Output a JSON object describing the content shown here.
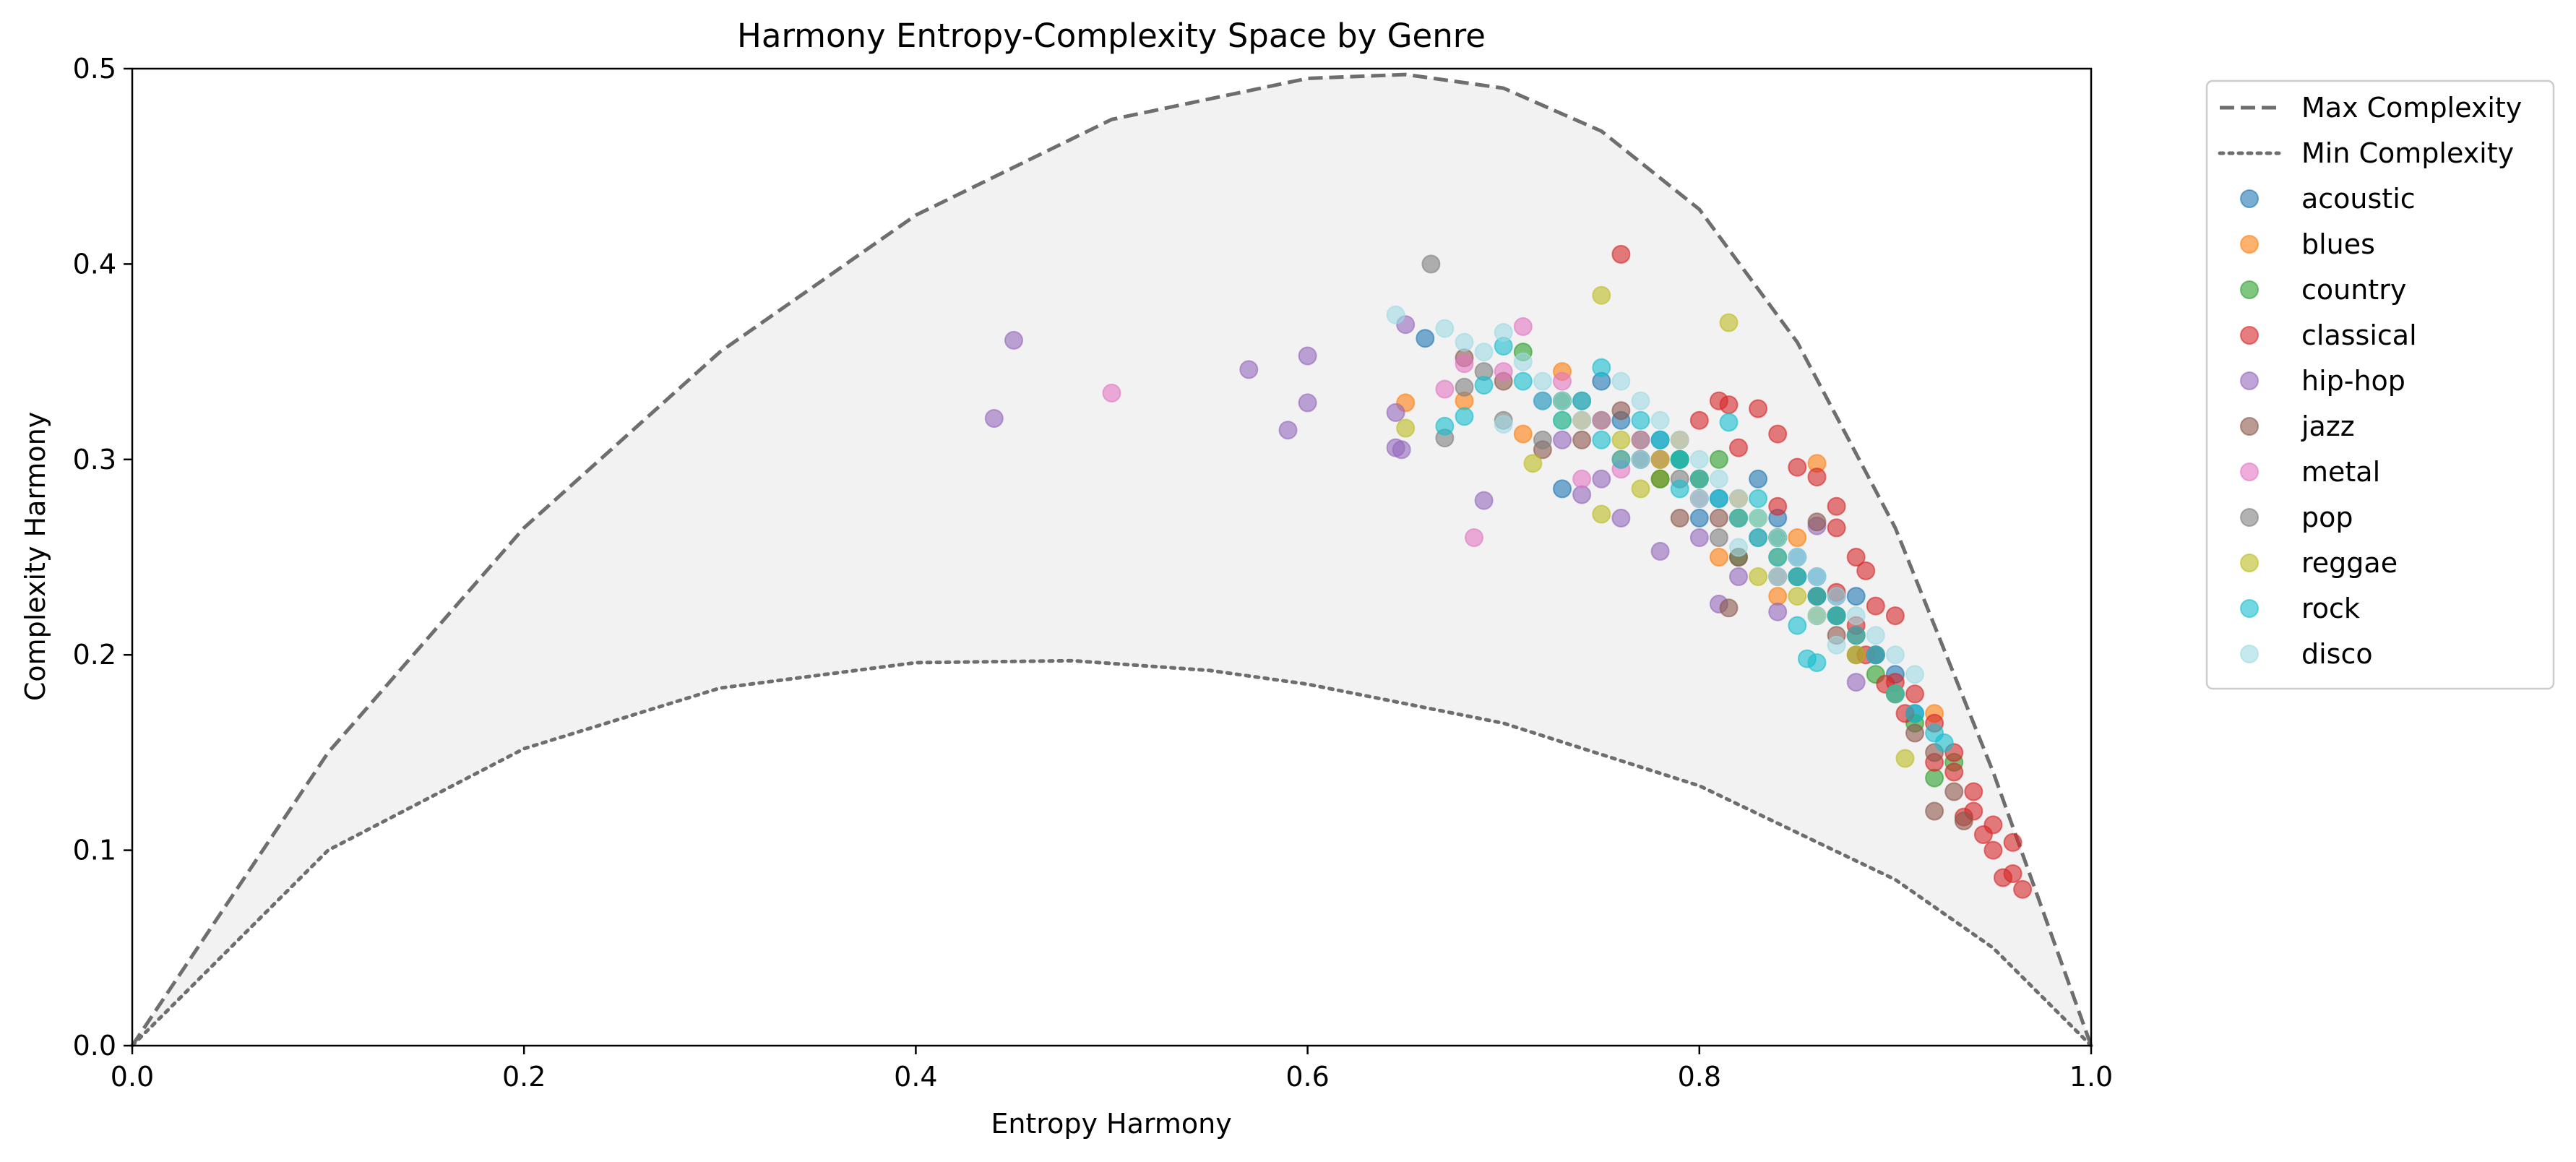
{
  "chart_data": {
    "type": "scatter",
    "title": "Harmony Entropy-Complexity Space by Genre",
    "xlabel": "Entropy Harmony",
    "ylabel": "Complexity Harmony",
    "xlim": [
      0.0,
      1.0
    ],
    "ylim": [
      0.0,
      0.5
    ],
    "xticks": [
      "0.0",
      "0.2",
      "0.4",
      "0.6",
      "0.8",
      "1.0"
    ],
    "yticks": [
      "0.0",
      "0.1",
      "0.2",
      "0.3",
      "0.4",
      "0.5"
    ],
    "grid": false,
    "legend_position": "outside upper right",
    "boundary_curves": [
      {
        "name": "Max Complexity",
        "style": "dashed",
        "color": "#6e6e6e",
        "points": [
          [
            0.0,
            0.0
          ],
          [
            0.1,
            0.15
          ],
          [
            0.2,
            0.265
          ],
          [
            0.3,
            0.355
          ],
          [
            0.4,
            0.425
          ],
          [
            0.5,
            0.474
          ],
          [
            0.6,
            0.495
          ],
          [
            0.65,
            0.497
          ],
          [
            0.7,
            0.49
          ],
          [
            0.75,
            0.468
          ],
          [
            0.8,
            0.428
          ],
          [
            0.85,
            0.36
          ],
          [
            0.9,
            0.265
          ],
          [
            0.95,
            0.14
          ],
          [
            1.0,
            0.0
          ]
        ]
      },
      {
        "name": "Min Complexity",
        "style": "dotted",
        "color": "#6e6e6e",
        "points": [
          [
            0.0,
            0.0
          ],
          [
            0.1,
            0.1
          ],
          [
            0.2,
            0.152
          ],
          [
            0.3,
            0.183
          ],
          [
            0.4,
            0.196
          ],
          [
            0.48,
            0.197
          ],
          [
            0.55,
            0.192
          ],
          [
            0.6,
            0.185
          ],
          [
            0.7,
            0.165
          ],
          [
            0.8,
            0.133
          ],
          [
            0.9,
            0.085
          ],
          [
            0.95,
            0.05
          ],
          [
            1.0,
            0.0
          ]
        ]
      }
    ],
    "series": [
      {
        "name": "acoustic",
        "color": "#1f77b4",
        "points": [
          [
            0.66,
            0.362
          ],
          [
            0.73,
            0.33
          ],
          [
            0.75,
            0.34
          ],
          [
            0.76,
            0.32
          ],
          [
            0.78,
            0.31
          ],
          [
            0.79,
            0.3
          ],
          [
            0.8,
            0.29
          ],
          [
            0.81,
            0.28
          ],
          [
            0.82,
            0.27
          ],
          [
            0.83,
            0.29
          ],
          [
            0.84,
            0.26
          ],
          [
            0.85,
            0.25
          ],
          [
            0.86,
            0.24
          ],
          [
            0.87,
            0.23
          ],
          [
            0.88,
            0.21
          ],
          [
            0.89,
            0.2
          ],
          [
            0.9,
            0.19
          ],
          [
            0.91,
            0.17
          ],
          [
            0.73,
            0.285
          ],
          [
            0.77,
            0.3
          ],
          [
            0.8,
            0.27
          ],
          [
            0.84,
            0.27
          ],
          [
            0.86,
            0.22
          ],
          [
            0.88,
            0.23
          ]
        ]
      },
      {
        "name": "blues",
        "color": "#ff7f0e",
        "points": [
          [
            0.65,
            0.329
          ],
          [
            0.68,
            0.33
          ],
          [
            0.71,
            0.313
          ],
          [
            0.73,
            0.345
          ],
          [
            0.76,
            0.3
          ],
          [
            0.78,
            0.29
          ],
          [
            0.79,
            0.31
          ],
          [
            0.82,
            0.28
          ],
          [
            0.85,
            0.26
          ],
          [
            0.86,
            0.298
          ],
          [
            0.87,
            0.22
          ],
          [
            0.88,
            0.21
          ],
          [
            0.9,
            0.18
          ],
          [
            0.92,
            0.17
          ],
          [
            0.74,
            0.32
          ],
          [
            0.81,
            0.25
          ],
          [
            0.84,
            0.23
          ]
        ]
      },
      {
        "name": "country",
        "color": "#2ca02c",
        "points": [
          [
            0.71,
            0.355
          ],
          [
            0.73,
            0.33
          ],
          [
            0.75,
            0.32
          ],
          [
            0.77,
            0.31
          ],
          [
            0.79,
            0.3
          ],
          [
            0.8,
            0.28
          ],
          [
            0.81,
            0.3
          ],
          [
            0.82,
            0.25
          ],
          [
            0.83,
            0.27
          ],
          [
            0.84,
            0.26
          ],
          [
            0.85,
            0.24
          ],
          [
            0.87,
            0.22
          ],
          [
            0.89,
            0.19
          ],
          [
            0.91,
            0.165
          ],
          [
            0.93,
            0.145
          ],
          [
            0.92,
            0.137
          ],
          [
            0.78,
            0.29
          ],
          [
            0.86,
            0.23
          ]
        ]
      },
      {
        "name": "classical",
        "color": "#d62728",
        "points": [
          [
            0.76,
            0.405
          ],
          [
            0.81,
            0.33
          ],
          [
            0.815,
            0.328
          ],
          [
            0.82,
            0.306
          ],
          [
            0.8,
            0.32
          ],
          [
            0.83,
            0.326
          ],
          [
            0.84,
            0.313
          ],
          [
            0.84,
            0.276
          ],
          [
            0.85,
            0.296
          ],
          [
            0.86,
            0.291
          ],
          [
            0.87,
            0.276
          ],
          [
            0.87,
            0.265
          ],
          [
            0.88,
            0.25
          ],
          [
            0.885,
            0.243
          ],
          [
            0.89,
            0.225
          ],
          [
            0.9,
            0.22
          ],
          [
            0.89,
            0.2
          ],
          [
            0.9,
            0.186
          ],
          [
            0.91,
            0.18
          ],
          [
            0.92,
            0.165
          ],
          [
            0.93,
            0.15
          ],
          [
            0.93,
            0.14
          ],
          [
            0.94,
            0.13
          ],
          [
            0.94,
            0.12
          ],
          [
            0.95,
            0.113
          ],
          [
            0.95,
            0.1
          ],
          [
            0.96,
            0.104
          ],
          [
            0.955,
            0.086
          ],
          [
            0.96,
            0.088
          ],
          [
            0.965,
            0.08
          ],
          [
            0.945,
            0.108
          ],
          [
            0.935,
            0.117
          ],
          [
            0.92,
            0.145
          ],
          [
            0.905,
            0.17
          ],
          [
            0.895,
            0.185
          ],
          [
            0.885,
            0.2
          ],
          [
            0.88,
            0.215
          ],
          [
            0.87,
            0.232
          ]
        ]
      },
      {
        "name": "hip-hop",
        "color": "#9467bd",
        "points": [
          [
            0.44,
            0.321
          ],
          [
            0.45,
            0.361
          ],
          [
            0.57,
            0.346
          ],
          [
            0.59,
            0.315
          ],
          [
            0.6,
            0.329
          ],
          [
            0.6,
            0.353
          ],
          [
            0.645,
            0.306
          ],
          [
            0.645,
            0.324
          ],
          [
            0.648,
            0.305
          ],
          [
            0.65,
            0.369
          ],
          [
            0.69,
            0.279
          ],
          [
            0.74,
            0.282
          ],
          [
            0.75,
            0.29
          ],
          [
            0.78,
            0.253
          ],
          [
            0.8,
            0.26
          ],
          [
            0.81,
            0.226
          ],
          [
            0.84,
            0.222
          ],
          [
            0.86,
            0.266
          ],
          [
            0.88,
            0.186
          ],
          [
            0.73,
            0.31
          ],
          [
            0.76,
            0.27
          ],
          [
            0.82,
            0.24
          ]
        ]
      },
      {
        "name": "jazz",
        "color": "#8c564b",
        "points": [
          [
            0.68,
            0.352
          ],
          [
            0.7,
            0.34
          ],
          [
            0.72,
            0.305
          ],
          [
            0.74,
            0.31
          ],
          [
            0.76,
            0.325
          ],
          [
            0.78,
            0.3
          ],
          [
            0.8,
            0.29
          ],
          [
            0.81,
            0.27
          ],
          [
            0.815,
            0.224
          ],
          [
            0.82,
            0.25
          ],
          [
            0.84,
            0.24
          ],
          [
            0.86,
            0.23
          ],
          [
            0.87,
            0.21
          ],
          [
            0.88,
            0.2
          ],
          [
            0.9,
            0.18
          ],
          [
            0.91,
            0.16
          ],
          [
            0.92,
            0.15
          ],
          [
            0.93,
            0.13
          ],
          [
            0.935,
            0.115
          ],
          [
            0.92,
            0.12
          ],
          [
            0.86,
            0.268
          ],
          [
            0.79,
            0.27
          ]
        ]
      },
      {
        "name": "metal",
        "color": "#e377c2",
        "points": [
          [
            0.5,
            0.334
          ],
          [
            0.67,
            0.336
          ],
          [
            0.68,
            0.349
          ],
          [
            0.685,
            0.26
          ],
          [
            0.7,
            0.345
          ],
          [
            0.71,
            0.368
          ],
          [
            0.72,
            0.33
          ],
          [
            0.73,
            0.34
          ],
          [
            0.74,
            0.29
          ],
          [
            0.75,
            0.32
          ],
          [
            0.77,
            0.31
          ],
          [
            0.78,
            0.3
          ],
          [
            0.8,
            0.28
          ],
          [
            0.82,
            0.27
          ],
          [
            0.84,
            0.25
          ],
          [
            0.76,
            0.295
          ]
        ]
      },
      {
        "name": "pop",
        "color": "#7f7f7f",
        "points": [
          [
            0.663,
            0.4
          ],
          [
            0.67,
            0.311
          ],
          [
            0.68,
            0.337
          ],
          [
            0.69,
            0.345
          ],
          [
            0.7,
            0.32
          ],
          [
            0.72,
            0.31
          ],
          [
            0.74,
            0.33
          ],
          [
            0.77,
            0.3
          ],
          [
            0.79,
            0.29
          ],
          [
            0.81,
            0.26
          ],
          [
            0.83,
            0.26
          ],
          [
            0.85,
            0.24
          ],
          [
            0.87,
            0.22
          ],
          [
            0.89,
            0.2
          ]
        ]
      },
      {
        "name": "reggae",
        "color": "#bcbd22",
        "points": [
          [
            0.65,
            0.316
          ],
          [
            0.715,
            0.298
          ],
          [
            0.73,
            0.32
          ],
          [
            0.75,
            0.384
          ],
          [
            0.75,
            0.272
          ],
          [
            0.76,
            0.31
          ],
          [
            0.78,
            0.3
          ],
          [
            0.8,
            0.29
          ],
          [
            0.815,
            0.37
          ],
          [
            0.82,
            0.27
          ],
          [
            0.84,
            0.25
          ],
          [
            0.85,
            0.23
          ],
          [
            0.86,
            0.22
          ],
          [
            0.88,
            0.2
          ],
          [
            0.9,
            0.18
          ],
          [
            0.905,
            0.147
          ],
          [
            0.77,
            0.285
          ],
          [
            0.83,
            0.24
          ]
        ]
      },
      {
        "name": "rock",
        "color": "#17becf",
        "points": [
          [
            0.67,
            0.317
          ],
          [
            0.68,
            0.322
          ],
          [
            0.69,
            0.338
          ],
          [
            0.7,
            0.358
          ],
          [
            0.71,
            0.34
          ],
          [
            0.72,
            0.33
          ],
          [
            0.73,
            0.32
          ],
          [
            0.74,
            0.33
          ],
          [
            0.75,
            0.31
          ],
          [
            0.75,
            0.347
          ],
          [
            0.76,
            0.3
          ],
          [
            0.77,
            0.32
          ],
          [
            0.78,
            0.31
          ],
          [
            0.79,
            0.3
          ],
          [
            0.8,
            0.29
          ],
          [
            0.81,
            0.28
          ],
          [
            0.815,
            0.319
          ],
          [
            0.82,
            0.27
          ],
          [
            0.83,
            0.26
          ],
          [
            0.84,
            0.25
          ],
          [
            0.85,
            0.24
          ],
          [
            0.855,
            0.198
          ],
          [
            0.86,
            0.23
          ],
          [
            0.87,
            0.22
          ],
          [
            0.88,
            0.21
          ],
          [
            0.89,
            0.2
          ],
          [
            0.9,
            0.18
          ],
          [
            0.91,
            0.17
          ],
          [
            0.92,
            0.16
          ],
          [
            0.925,
            0.155
          ],
          [
            0.86,
            0.196
          ],
          [
            0.83,
            0.28
          ],
          [
            0.79,
            0.285
          ],
          [
            0.85,
            0.215
          ]
        ]
      },
      {
        "name": "disco",
        "color": "#9edae5",
        "points": [
          [
            0.645,
            0.374
          ],
          [
            0.67,
            0.367
          ],
          [
            0.68,
            0.36
          ],
          [
            0.69,
            0.355
          ],
          [
            0.7,
            0.365
          ],
          [
            0.7,
            0.318
          ],
          [
            0.71,
            0.35
          ],
          [
            0.72,
            0.34
          ],
          [
            0.73,
            0.33
          ],
          [
            0.74,
            0.32
          ],
          [
            0.76,
            0.34
          ],
          [
            0.77,
            0.33
          ],
          [
            0.78,
            0.32
          ],
          [
            0.79,
            0.31
          ],
          [
            0.8,
            0.3
          ],
          [
            0.81,
            0.29
          ],
          [
            0.82,
            0.28
          ],
          [
            0.83,
            0.27
          ],
          [
            0.84,
            0.26
          ],
          [
            0.85,
            0.25
          ],
          [
            0.86,
            0.24
          ],
          [
            0.87,
            0.23
          ],
          [
            0.88,
            0.22
          ],
          [
            0.89,
            0.21
          ],
          [
            0.9,
            0.2
          ],
          [
            0.91,
            0.19
          ],
          [
            0.8,
            0.28
          ],
          [
            0.82,
            0.255
          ],
          [
            0.84,
            0.24
          ],
          [
            0.86,
            0.22
          ],
          [
            0.87,
            0.205
          ],
          [
            0.77,
            0.3
          ]
        ]
      }
    ]
  }
}
